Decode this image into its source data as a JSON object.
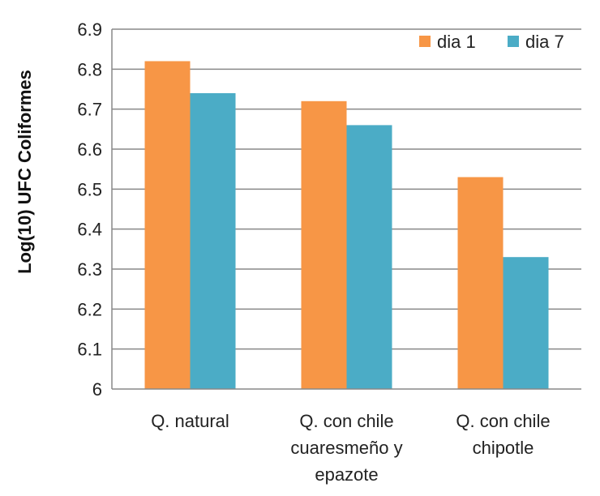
{
  "chart_data": {
    "type": "bar",
    "title": "",
    "xlabel": "",
    "ylabel": "Log(10) UFC Coliformes",
    "ylim": [
      6,
      6.9
    ],
    "yticks": [
      "6",
      "6.1",
      "6.2",
      "6.3",
      "6.4",
      "6.5",
      "6.6",
      "6.7",
      "6.8",
      "6.9"
    ],
    "categories": [
      [
        "Q. natural"
      ],
      [
        "Q. con chile",
        "cuaresmeño y",
        "epazote"
      ],
      [
        "Q. con chile",
        "chipotle"
      ]
    ],
    "series": [
      {
        "name": "dia 1",
        "color": "#F79646",
        "values": [
          6.82,
          6.72,
          6.53
        ]
      },
      {
        "name": "dia 7",
        "color": "#4BACC6",
        "values": [
          6.74,
          6.66,
          6.33
        ]
      }
    ],
    "legend_position": "top-right",
    "grid": true,
    "grid_color": "#888888"
  }
}
